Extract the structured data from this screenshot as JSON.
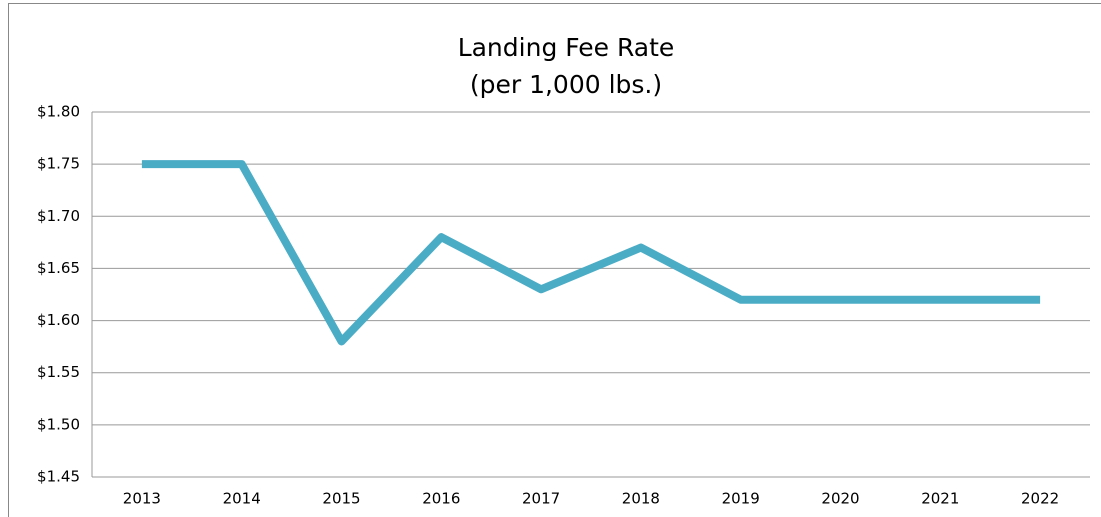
{
  "chart_data": {
    "type": "line",
    "title": "Landing Fee Rate",
    "subtitle": "(per 1,000 lbs.)",
    "categories": [
      "2013",
      "2014",
      "2015",
      "2016",
      "2017",
      "2018",
      "2019",
      "2020",
      "2021",
      "2022"
    ],
    "series": [
      {
        "color": "#4bacc6",
        "values": [
          1.75,
          1.75,
          1.58,
          1.68,
          1.63,
          1.67,
          1.62,
          1.62,
          1.62,
          1.62
        ]
      }
    ],
    "ylim": [
      1.45,
      1.8
    ],
    "yticks": [
      {
        "value": 1.45,
        "label": "$1.45"
      },
      {
        "value": 1.5,
        "label": "$1.50"
      },
      {
        "value": 1.55,
        "label": "$1.55"
      },
      {
        "value": 1.6,
        "label": "$1.60"
      },
      {
        "value": 1.65,
        "label": "$1.65"
      },
      {
        "value": 1.7,
        "label": "$1.70"
      },
      {
        "value": 1.75,
        "label": "$1.75"
      },
      {
        "value": 1.8,
        "label": "$1.80"
      }
    ],
    "grid": true
  }
}
